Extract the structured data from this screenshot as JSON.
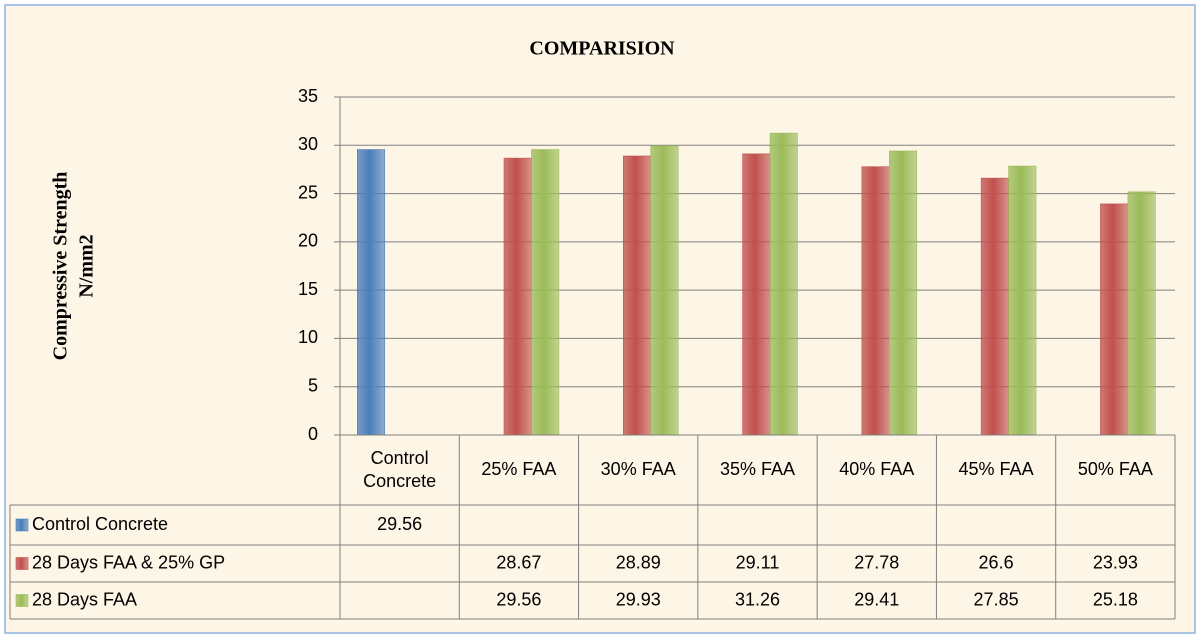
{
  "chart_data": {
    "type": "bar",
    "title": "COMPARISION",
    "ylabel": [
      "Compressive Strength",
      "N/mm2"
    ],
    "categories": [
      "Control Concrete",
      "25% FAA",
      "30% FAA",
      "35% FAA",
      "40% FAA",
      "45% FAA",
      "50% FAA"
    ],
    "series": [
      {
        "name": "Control Concrete",
        "color": "#4a7ebb",
        "values": [
          29.56,
          null,
          null,
          null,
          null,
          null,
          null
        ]
      },
      {
        "name": "28 Days FAA & 25% GP",
        "color": "#c0504d",
        "values": [
          null,
          28.67,
          28.89,
          29.11,
          27.78,
          26.6,
          23.93
        ]
      },
      {
        "name": "28 Days FAA",
        "color": "#9bbb59",
        "values": [
          null,
          29.56,
          29.93,
          31.26,
          29.41,
          27.85,
          25.18
        ]
      }
    ],
    "ylim": [
      0,
      35
    ],
    "yticks": [
      0,
      5,
      10,
      15,
      20,
      25,
      30,
      35
    ],
    "grid": true,
    "data_table": true
  }
}
